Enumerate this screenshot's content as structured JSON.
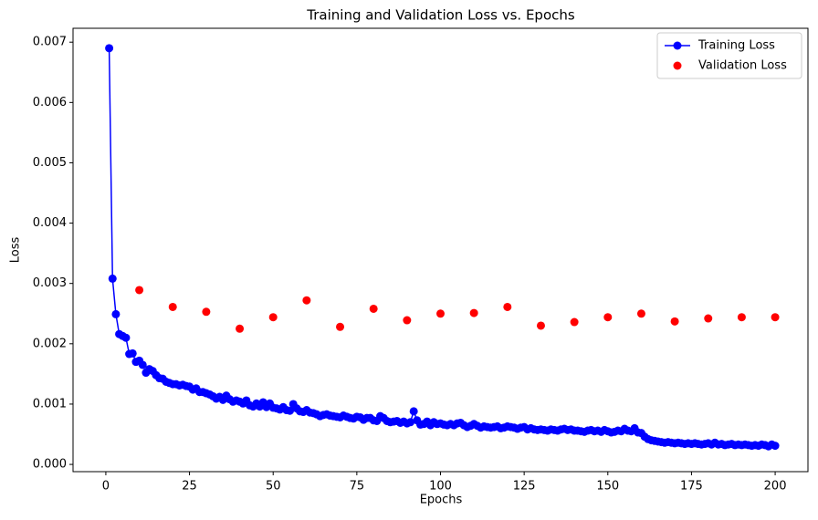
{
  "chart_data": {
    "type": "line",
    "title": "Training and Validation Loss vs. Epochs",
    "x_label": "Epochs",
    "y_label": "Loss",
    "xlim": [
      -9.8,
      209.8
    ],
    "xticks": [
      0,
      25,
      50,
      75,
      100,
      125,
      150,
      175,
      200
    ],
    "ylim": [
      -0.00012,
      0.00723
    ],
    "yticks": [
      {
        "value": 0,
        "label": "0.000"
      },
      {
        "value": 0.001,
        "label": "0.001"
      },
      {
        "value": 0.002,
        "label": "0.002"
      },
      {
        "value": 0.003,
        "label": "0.003"
      },
      {
        "value": 0.004,
        "label": "0.004"
      },
      {
        "value": 0.005,
        "label": "0.005"
      },
      {
        "value": 0.006,
        "label": "0.006"
      },
      {
        "value": 0.007,
        "label": "0.007"
      }
    ],
    "grid": false,
    "legend": "upper right",
    "series": [
      {
        "name": "Training Loss",
        "color": "#0000ff",
        "linestyle": "solid",
        "x": [
          1,
          2,
          3,
          4,
          5,
          6,
          7,
          8,
          9,
          10,
          11,
          12,
          13,
          14,
          15,
          16,
          17,
          18,
          19,
          20,
          21,
          22,
          23,
          24,
          25,
          26,
          27,
          28,
          29,
          30,
          31,
          32,
          33,
          34,
          35,
          36,
          37,
          38,
          39,
          40,
          41,
          42,
          43,
          44,
          45,
          46,
          47,
          48,
          49,
          50,
          51,
          52,
          53,
          54,
          55,
          56,
          57,
          58,
          59,
          60,
          61,
          62,
          63,
          64,
          65,
          66,
          67,
          68,
          69,
          70,
          71,
          72,
          73,
          74,
          75,
          76,
          77,
          78,
          79,
          80,
          81,
          82,
          83,
          84,
          85,
          86,
          87,
          88,
          89,
          90,
          91,
          92,
          93,
          94,
          95,
          96,
          97,
          98,
          99,
          100,
          101,
          102,
          103,
          104,
          105,
          106,
          107,
          108,
          109,
          110,
          111,
          112,
          113,
          114,
          115,
          116,
          117,
          118,
          119,
          120,
          121,
          122,
          123,
          124,
          125,
          126,
          127,
          128,
          129,
          130,
          131,
          132,
          133,
          134,
          135,
          136,
          137,
          138,
          139,
          140,
          141,
          142,
          143,
          144,
          145,
          146,
          147,
          148,
          149,
          150,
          151,
          152,
          153,
          154,
          155,
          156,
          157,
          158,
          159,
          160,
          161,
          162,
          163,
          164,
          165,
          166,
          167,
          168,
          169,
          170,
          171,
          172,
          173,
          174,
          175,
          176,
          177,
          178,
          179,
          180,
          181,
          182,
          183,
          184,
          185,
          186,
          187,
          188,
          189,
          190,
          191,
          192,
          193,
          194,
          195,
          196,
          197,
          198,
          199,
          200
        ],
        "values": [
          0.0069,
          0.00308,
          0.00249,
          0.00216,
          0.00213,
          0.0021,
          0.00183,
          0.00184,
          0.0017,
          0.00172,
          0.00165,
          0.00152,
          0.00158,
          0.00155,
          0.00148,
          0.00143,
          0.00142,
          0.00137,
          0.00135,
          0.00133,
          0.00133,
          0.00131,
          0.00132,
          0.0013,
          0.00129,
          0.00124,
          0.00126,
          0.0012,
          0.0012,
          0.00118,
          0.00116,
          0.00113,
          0.00109,
          0.00112,
          0.00107,
          0.00114,
          0.00108,
          0.00104,
          0.00106,
          0.00104,
          0.00101,
          0.00106,
          0.00098,
          0.00096,
          0.00101,
          0.00096,
          0.00103,
          0.00095,
          0.00101,
          0.00094,
          0.00093,
          0.00091,
          0.00095,
          0.0009,
          0.00089,
          0.001,
          0.00093,
          0.00088,
          0.00087,
          0.0009,
          0.00086,
          0.00085,
          0.00083,
          0.0008,
          0.00082,
          0.00083,
          0.00081,
          0.0008,
          0.00079,
          0.00078,
          0.00081,
          0.00079,
          0.00077,
          0.00076,
          0.00079,
          0.00078,
          0.00074,
          0.00077,
          0.00077,
          0.00073,
          0.00072,
          0.0008,
          0.00077,
          0.00072,
          0.0007,
          0.00071,
          0.00072,
          0.00069,
          0.00071,
          0.00068,
          0.0007,
          0.00088,
          0.00073,
          0.00066,
          0.00067,
          0.00071,
          0.00065,
          0.0007,
          0.00067,
          0.00068,
          0.00066,
          0.00065,
          0.00067,
          0.00065,
          0.00068,
          0.00069,
          0.00065,
          0.00062,
          0.00064,
          0.00067,
          0.00064,
          0.00061,
          0.00063,
          0.00062,
          0.00061,
          0.00062,
          0.00063,
          0.0006,
          0.00061,
          0.00063,
          0.00062,
          0.00061,
          0.00059,
          0.00061,
          0.00062,
          0.00058,
          0.0006,
          0.00058,
          0.00057,
          0.00058,
          0.00057,
          0.00056,
          0.00058,
          0.00057,
          0.00056,
          0.00058,
          0.00059,
          0.00057,
          0.00058,
          0.00056,
          0.00056,
          0.00055,
          0.00054,
          0.00056,
          0.00057,
          0.00055,
          0.00056,
          0.00054,
          0.00057,
          0.00055,
          0.00053,
          0.00054,
          0.00056,
          0.00055,
          0.00059,
          0.00056,
          0.00055,
          0.0006,
          0.00053,
          0.00052,
          0.00046,
          0.00042,
          0.0004,
          0.00039,
          0.00038,
          0.00037,
          0.00036,
          0.00037,
          0.00036,
          0.00035,
          0.00036,
          0.00035,
          0.00034,
          0.00035,
          0.00034,
          0.00035,
          0.00034,
          0.00033,
          0.00034,
          0.00035,
          0.00033,
          0.00036,
          0.00033,
          0.00034,
          0.00032,
          0.00033,
          0.00034,
          0.00032,
          0.00033,
          0.00032,
          0.00033,
          0.00032,
          0.00031,
          0.00032,
          0.00031,
          0.00033,
          0.00032,
          0.0003,
          0.00033,
          0.00031
        ]
      },
      {
        "name": "Validation Loss",
        "color": "#ff0000",
        "linestyle": "none",
        "x": [
          10,
          20,
          30,
          40,
          50,
          60,
          70,
          80,
          90,
          100,
          110,
          120,
          130,
          140,
          150,
          160,
          170,
          180,
          190,
          200
        ],
        "values": [
          0.00289,
          0.00261,
          0.00253,
          0.00225,
          0.00244,
          0.00272,
          0.00228,
          0.00258,
          0.00239,
          0.0025,
          0.00251,
          0.00261,
          0.0023,
          0.00236,
          0.00244,
          0.0025,
          0.00237,
          0.00242,
          0.00244,
          0.00244
        ]
      }
    ]
  }
}
